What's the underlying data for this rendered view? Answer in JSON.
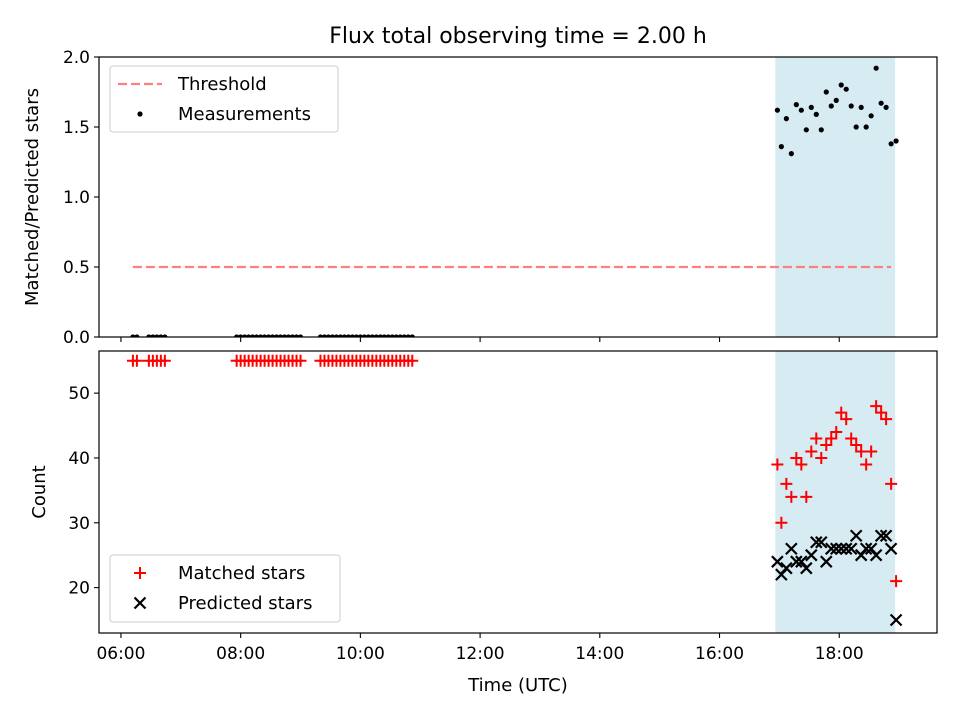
{
  "chart_data": [
    {
      "type": "scatter",
      "title": "Flux total observing time = 2.00 h",
      "xlabel": "",
      "ylabel": "Matched/Predicted stars",
      "ylim": [
        0,
        2.0
      ],
      "yticks": [
        "0.0",
        "0.5",
        "1.0",
        "1.5",
        "2.0"
      ],
      "xlim": [
        "05:38",
        "19:38"
      ],
      "xticks": [
        "06:00",
        "08:00",
        "10:00",
        "12:00",
        "14:00",
        "16:00",
        "18:00"
      ],
      "grid": false,
      "legend_position": "top-left",
      "highlight": {
        "x_start": "16:56",
        "x_end": "18:56",
        "color": "#add8e6"
      },
      "series": [
        {
          "name": "Threshold",
          "kind": "dashed-line",
          "color": "#ff7f7f",
          "points": [
            {
              "x": "06:12",
              "y": 0.5
            },
            {
              "x": "18:52",
              "y": 0.5
            }
          ]
        },
        {
          "name": "Measurements",
          "kind": "dots",
          "color": "#000000",
          "points": [
            {
              "x": "06:12",
              "y": 0
            },
            {
              "x": "06:16",
              "y": 0
            },
            {
              "x": "06:28",
              "y": 0
            },
            {
              "x": "06:32",
              "y": 0
            },
            {
              "x": "06:36",
              "y": 0
            },
            {
              "x": "06:40",
              "y": 0
            },
            {
              "x": "06:44",
              "y": 0
            },
            {
              "x": "07:56",
              "y": 0
            },
            {
              "x": "08:00",
              "y": 0
            },
            {
              "x": "08:04",
              "y": 0
            },
            {
              "x": "08:08",
              "y": 0
            },
            {
              "x": "08:12",
              "y": 0
            },
            {
              "x": "08:16",
              "y": 0
            },
            {
              "x": "08:20",
              "y": 0
            },
            {
              "x": "08:24",
              "y": 0
            },
            {
              "x": "08:28",
              "y": 0
            },
            {
              "x": "08:32",
              "y": 0
            },
            {
              "x": "08:36",
              "y": 0
            },
            {
              "x": "08:40",
              "y": 0
            },
            {
              "x": "08:44",
              "y": 0
            },
            {
              "x": "08:48",
              "y": 0
            },
            {
              "x": "08:52",
              "y": 0
            },
            {
              "x": "08:56",
              "y": 0
            },
            {
              "x": "09:00",
              "y": 0
            },
            {
              "x": "09:20",
              "y": 0
            },
            {
              "x": "09:24",
              "y": 0
            },
            {
              "x": "09:28",
              "y": 0
            },
            {
              "x": "09:32",
              "y": 0
            },
            {
              "x": "09:36",
              "y": 0
            },
            {
              "x": "09:40",
              "y": 0
            },
            {
              "x": "09:44",
              "y": 0
            },
            {
              "x": "09:48",
              "y": 0
            },
            {
              "x": "09:52",
              "y": 0
            },
            {
              "x": "09:56",
              "y": 0
            },
            {
              "x": "10:00",
              "y": 0
            },
            {
              "x": "10:04",
              "y": 0
            },
            {
              "x": "10:08",
              "y": 0
            },
            {
              "x": "10:12",
              "y": 0
            },
            {
              "x": "10:16",
              "y": 0
            },
            {
              "x": "10:20",
              "y": 0
            },
            {
              "x": "10:24",
              "y": 0
            },
            {
              "x": "10:28",
              "y": 0
            },
            {
              "x": "10:32",
              "y": 0
            },
            {
              "x": "10:36",
              "y": 0
            },
            {
              "x": "10:40",
              "y": 0
            },
            {
              "x": "10:44",
              "y": 0
            },
            {
              "x": "10:48",
              "y": 0
            },
            {
              "x": "10:52",
              "y": 0
            },
            {
              "x": "16:58",
              "y": 1.62
            },
            {
              "x": "17:02",
              "y": 1.36
            },
            {
              "x": "17:07",
              "y": 1.56
            },
            {
              "x": "17:12",
              "y": 1.31
            },
            {
              "x": "17:17",
              "y": 1.66
            },
            {
              "x": "17:22",
              "y": 1.62
            },
            {
              "x": "17:27",
              "y": 1.48
            },
            {
              "x": "17:32",
              "y": 1.64
            },
            {
              "x": "17:37",
              "y": 1.59
            },
            {
              "x": "17:42",
              "y": 1.48
            },
            {
              "x": "17:47",
              "y": 1.75
            },
            {
              "x": "17:52",
              "y": 1.65
            },
            {
              "x": "17:57",
              "y": 1.69
            },
            {
              "x": "18:02",
              "y": 1.8
            },
            {
              "x": "18:07",
              "y": 1.77
            },
            {
              "x": "18:12",
              "y": 1.65
            },
            {
              "x": "18:17",
              "y": 1.5
            },
            {
              "x": "18:22",
              "y": 1.64
            },
            {
              "x": "18:27",
              "y": 1.5
            },
            {
              "x": "18:32",
              "y": 1.58
            },
            {
              "x": "18:37",
              "y": 1.92
            },
            {
              "x": "18:42",
              "y": 1.67
            },
            {
              "x": "18:47",
              "y": 1.64
            },
            {
              "x": "18:52",
              "y": 1.38
            },
            {
              "x": "18:57",
              "y": 1.4
            }
          ]
        }
      ]
    },
    {
      "type": "scatter",
      "title": "",
      "xlabel": "Time (UTC)",
      "ylabel": "Count",
      "ylim": [
        13,
        56.5
      ],
      "yticks": [
        "20",
        "30",
        "40",
        "50"
      ],
      "xlim": [
        "05:38",
        "19:38"
      ],
      "xticks": [
        "06:00",
        "08:00",
        "10:00",
        "12:00",
        "14:00",
        "16:00",
        "18:00"
      ],
      "grid": false,
      "legend_position": "bottom-left",
      "highlight": {
        "x_start": "16:56",
        "x_end": "18:56",
        "color": "#add8e6"
      },
      "series": [
        {
          "name": "Matched stars",
          "kind": "plus",
          "color": "#ff0000",
          "points": [
            {
              "x": "06:12",
              "y": 55
            },
            {
              "x": "06:16",
              "y": 55
            },
            {
              "x": "06:28",
              "y": 55
            },
            {
              "x": "06:32",
              "y": 55
            },
            {
              "x": "06:36",
              "y": 55
            },
            {
              "x": "06:40",
              "y": 55
            },
            {
              "x": "06:44",
              "y": 55
            },
            {
              "x": "07:56",
              "y": 55
            },
            {
              "x": "08:00",
              "y": 55
            },
            {
              "x": "08:04",
              "y": 55
            },
            {
              "x": "08:08",
              "y": 55
            },
            {
              "x": "08:12",
              "y": 55
            },
            {
              "x": "08:16",
              "y": 55
            },
            {
              "x": "08:20",
              "y": 55
            },
            {
              "x": "08:24",
              "y": 55
            },
            {
              "x": "08:28",
              "y": 55
            },
            {
              "x": "08:32",
              "y": 55
            },
            {
              "x": "08:36",
              "y": 55
            },
            {
              "x": "08:40",
              "y": 55
            },
            {
              "x": "08:44",
              "y": 55
            },
            {
              "x": "08:48",
              "y": 55
            },
            {
              "x": "08:52",
              "y": 55
            },
            {
              "x": "08:56",
              "y": 55
            },
            {
              "x": "09:00",
              "y": 55
            },
            {
              "x": "09:20",
              "y": 55
            },
            {
              "x": "09:24",
              "y": 55
            },
            {
              "x": "09:28",
              "y": 55
            },
            {
              "x": "09:32",
              "y": 55
            },
            {
              "x": "09:36",
              "y": 55
            },
            {
              "x": "09:40",
              "y": 55
            },
            {
              "x": "09:44",
              "y": 55
            },
            {
              "x": "09:48",
              "y": 55
            },
            {
              "x": "09:52",
              "y": 55
            },
            {
              "x": "09:56",
              "y": 55
            },
            {
              "x": "10:00",
              "y": 55
            },
            {
              "x": "10:04",
              "y": 55
            },
            {
              "x": "10:08",
              "y": 55
            },
            {
              "x": "10:12",
              "y": 55
            },
            {
              "x": "10:16",
              "y": 55
            },
            {
              "x": "10:20",
              "y": 55
            },
            {
              "x": "10:24",
              "y": 55
            },
            {
              "x": "10:28",
              "y": 55
            },
            {
              "x": "10:32",
              "y": 55
            },
            {
              "x": "10:36",
              "y": 55
            },
            {
              "x": "10:40",
              "y": 55
            },
            {
              "x": "10:44",
              "y": 55
            },
            {
              "x": "10:48",
              "y": 55
            },
            {
              "x": "10:52",
              "y": 55
            },
            {
              "x": "16:58",
              "y": 39
            },
            {
              "x": "17:02",
              "y": 30
            },
            {
              "x": "17:07",
              "y": 36
            },
            {
              "x": "17:12",
              "y": 34
            },
            {
              "x": "17:17",
              "y": 40
            },
            {
              "x": "17:22",
              "y": 39
            },
            {
              "x": "17:27",
              "y": 34
            },
            {
              "x": "17:32",
              "y": 41
            },
            {
              "x": "17:37",
              "y": 43
            },
            {
              "x": "17:42",
              "y": 40
            },
            {
              "x": "17:47",
              "y": 42
            },
            {
              "x": "17:52",
              "y": 43
            },
            {
              "x": "17:57",
              "y": 44
            },
            {
              "x": "18:02",
              "y": 47
            },
            {
              "x": "18:07",
              "y": 46
            },
            {
              "x": "18:12",
              "y": 43
            },
            {
              "x": "18:17",
              "y": 42
            },
            {
              "x": "18:22",
              "y": 41
            },
            {
              "x": "18:27",
              "y": 39
            },
            {
              "x": "18:32",
              "y": 41
            },
            {
              "x": "18:37",
              "y": 48
            },
            {
              "x": "18:42",
              "y": 47
            },
            {
              "x": "18:47",
              "y": 46
            },
            {
              "x": "18:52",
              "y": 36
            },
            {
              "x": "18:57",
              "y": 21
            }
          ]
        },
        {
          "name": "Predicted stars",
          "kind": "cross",
          "color": "#000000",
          "points": [
            {
              "x": "16:58",
              "y": 24
            },
            {
              "x": "17:02",
              "y": 22
            },
            {
              "x": "17:07",
              "y": 23
            },
            {
              "x": "17:12",
              "y": 26
            },
            {
              "x": "17:17",
              "y": 24
            },
            {
              "x": "17:22",
              "y": 24
            },
            {
              "x": "17:27",
              "y": 23
            },
            {
              "x": "17:32",
              "y": 25
            },
            {
              "x": "17:37",
              "y": 27
            },
            {
              "x": "17:42",
              "y": 27
            },
            {
              "x": "17:47",
              "y": 24
            },
            {
              "x": "17:52",
              "y": 26
            },
            {
              "x": "17:57",
              "y": 26
            },
            {
              "x": "18:02",
              "y": 26
            },
            {
              "x": "18:07",
              "y": 26
            },
            {
              "x": "18:12",
              "y": 26
            },
            {
              "x": "18:17",
              "y": 28
            },
            {
              "x": "18:22",
              "y": 25
            },
            {
              "x": "18:27",
              "y": 26
            },
            {
              "x": "18:32",
              "y": 26
            },
            {
              "x": "18:37",
              "y": 25
            },
            {
              "x": "18:42",
              "y": 28
            },
            {
              "x": "18:47",
              "y": 28
            },
            {
              "x": "18:52",
              "y": 26
            },
            {
              "x": "18:57",
              "y": 15
            }
          ]
        }
      ]
    }
  ]
}
